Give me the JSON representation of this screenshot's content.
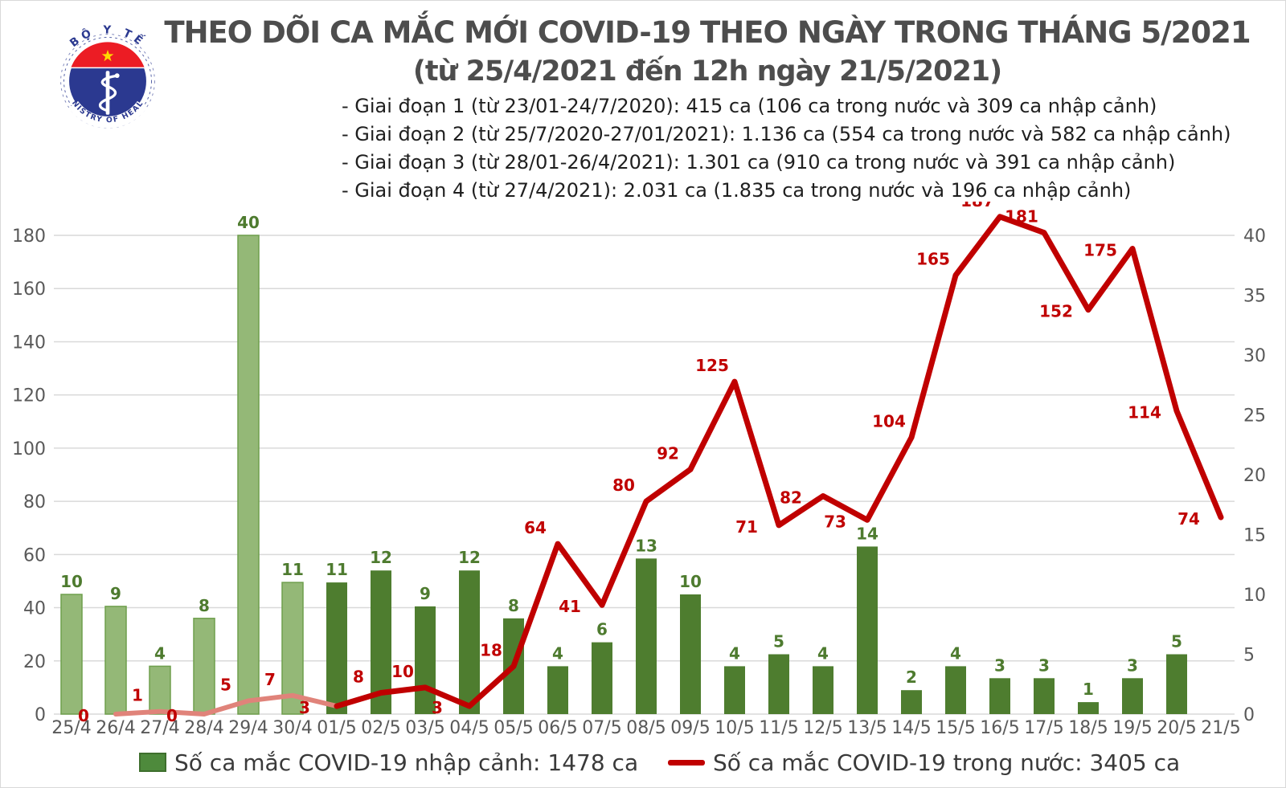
{
  "header": {
    "logo": {
      "top_text": "BỘ Y TẾ",
      "bottom_text": "MINISTRY OF HEALTH"
    },
    "title": "THEO DÕI CA MẮC MỚI COVID-19 THEO NGÀY TRONG THÁNG 5/2021",
    "subtitle": "(từ 25/4/2021 đến 12h ngày 21/5/2021)",
    "notes": [
      "- Giai đoạn 1 (từ 23/01-24/7/2020): 415 ca (106 ca trong nước và 309 ca nhập cảnh)",
      "- Giai đoạn 2 (từ 25/7/2020-27/01/2021): 1.136 ca (554 ca trong nước và 582 ca nhập cảnh)",
      "- Giai đoạn 3 (từ 28/01-26/4/2021): 1.301 ca (910 ca trong nước và 391 ca nhập cảnh)",
      "- Giai đoạn 4 (từ 27/4/2021): 2.031 ca (1.835 ca trong nước và 196 ca nhập cảnh)"
    ]
  },
  "chart_data": {
    "type": "bar+line",
    "title": "Theo dõi ca mắc mới COVID-19 theo ngày trong tháng 5/2021",
    "categories": [
      "25/4",
      "26/4",
      "27/4",
      "28/4",
      "29/4",
      "30/4",
      "01/5",
      "02/5",
      "03/5",
      "04/5",
      "05/5",
      "06/5",
      "07/5",
      "08/5",
      "09/5",
      "10/5",
      "11/5",
      "12/5",
      "13/5",
      "14/5",
      "15/5",
      "16/5",
      "17/5",
      "18/5",
      "19/5",
      "20/5",
      "21/5"
    ],
    "series": [
      {
        "name": "Số ca mắc COVID-19 nhập cảnh: 1478 ca",
        "type": "bar",
        "axis": "right",
        "values": [
          10,
          9,
          4,
          8,
          40,
          11,
          11,
          12,
          9,
          12,
          8,
          4,
          6,
          13,
          10,
          4,
          5,
          4,
          14,
          2,
          4,
          3,
          3,
          1,
          3,
          5,
          null
        ]
      },
      {
        "name": "Số ca mắc COVID-19 trong nước: 3405 ca",
        "type": "line",
        "axis": "left",
        "values": [
          null,
          0,
          1,
          0,
          5,
          7,
          3,
          8,
          10,
          3,
          18,
          64,
          41,
          80,
          92,
          125,
          71,
          82,
          73,
          104,
          165,
          187,
          181,
          152,
          175,
          114,
          74
        ]
      }
    ],
    "left_axis": {
      "min": 0,
      "max": 180,
      "step": 20
    },
    "right_axis": {
      "min": 0,
      "max": 40,
      "step": 5
    },
    "grid": true,
    "legend_position": "bottom",
    "april_split_index": 6,
    "theme": {
      "bar_may": "#4e7d2f",
      "bar_april": "#94b877",
      "bar_april_border": "#6f9f4d",
      "line_may": "#c00000",
      "line_april": "#e0837a",
      "grid": "#d9d9d9",
      "axis_text": "#595959",
      "bar_label": "#4e7b2f",
      "line_label": "#c00000",
      "logo_blue": "#2b3990",
      "logo_red": "#ec1c24",
      "logo_star": "#ffd800"
    }
  }
}
